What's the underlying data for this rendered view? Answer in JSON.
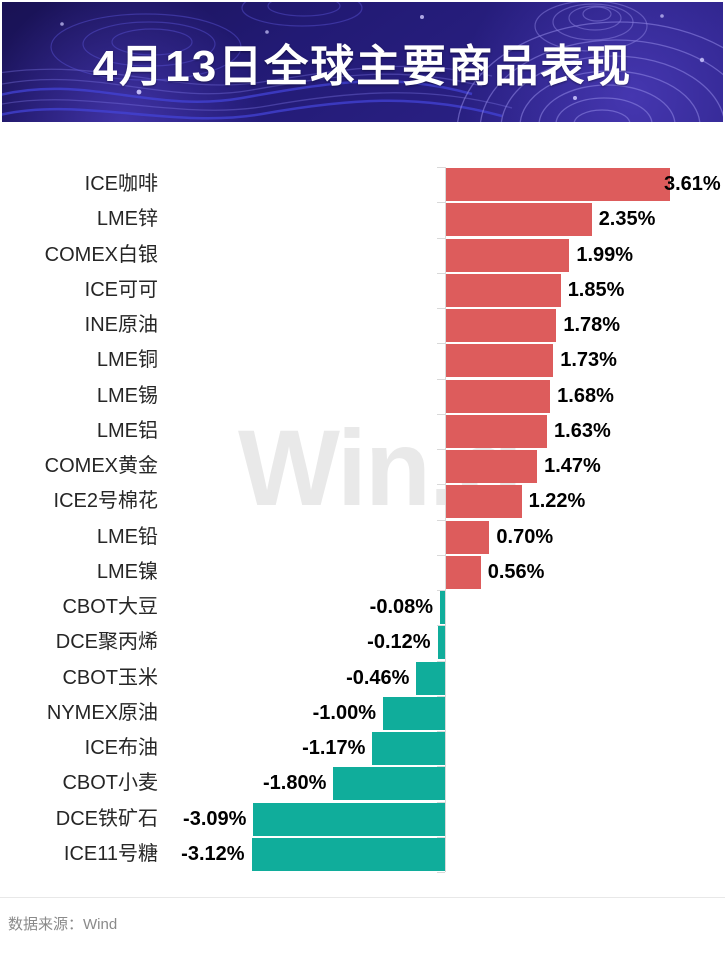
{
  "header": {
    "title": "4月13日全球主要商品表现"
  },
  "watermark": {
    "text": "Win.d"
  },
  "footer": {
    "source": "数据来源：Wind"
  },
  "colors": {
    "positive_bar": "#DD5C5C",
    "negative_bar": "#10AD9B",
    "axis": "#D9D9D9",
    "watermark": "#E9E9E9",
    "banner_base": "#221A74",
    "banner_contour": "#9188E5",
    "title_text": "#FFFFFF",
    "category_text": "#262626",
    "value_text": "#000000",
    "source_text": "#8A8A8A"
  },
  "chart_data": {
    "type": "bar",
    "orientation": "horizontal",
    "title": "4月13日全球主要商品表现",
    "unit": "%",
    "grid": false,
    "xlim": [
      -3.5,
      4.5
    ],
    "value_label_position": "outside-end",
    "categories": [
      "ICE咖啡",
      "LME锌",
      "COMEX白银",
      "ICE可可",
      "INE原油",
      "LME铜",
      "LME锡",
      "LME铝",
      "COMEX黄金",
      "ICE2号棉花",
      "LME铅",
      "LME镍",
      "CBOT大豆",
      "DCE聚丙烯",
      "CBOT玉米",
      "NYMEX原油",
      "ICE布油",
      "CBOT小麦",
      "DCE铁矿石",
      "ICE11号糖"
    ],
    "values": [
      3.61,
      2.35,
      1.99,
      1.85,
      1.78,
      1.73,
      1.68,
      1.63,
      1.47,
      1.22,
      0.7,
      0.56,
      -0.08,
      -0.12,
      -0.46,
      -1.0,
      -1.17,
      -1.8,
      -3.09,
      -3.12
    ],
    "value_labels": [
      "3.61%",
      "2.35%",
      "1.99%",
      "1.85%",
      "1.78%",
      "1.73%",
      "1.68%",
      "1.63%",
      "1.47%",
      "1.22%",
      "0.70%",
      "0.56%",
      "-0.08%",
      "-0.12%",
      "-0.46%",
      "-1.00%",
      "-1.17%",
      "-1.80%",
      "-3.09%",
      "-3.12%"
    ],
    "positive_color": "#DD5C5C",
    "negative_color": "#10AD9B",
    "source": "Wind"
  }
}
